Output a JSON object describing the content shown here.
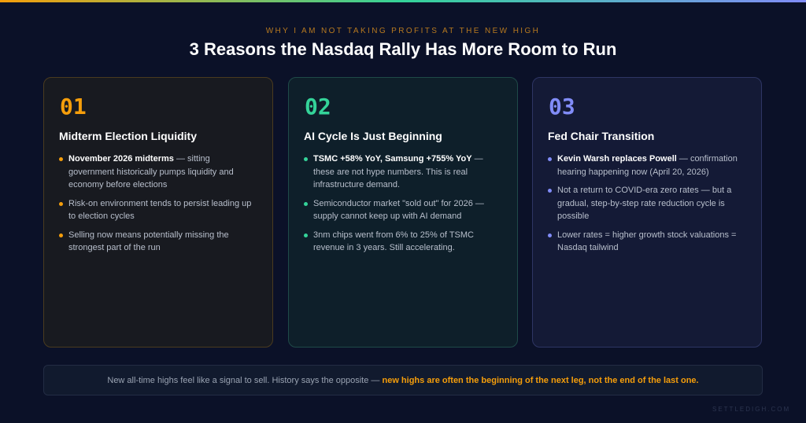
{
  "header": {
    "eyebrow": "WHY I AM NOT TAKING PROFITS AT THE NEW HIGH",
    "title": "3 Reasons the Nasdaq Rally Has More Room to Run"
  },
  "colors": {
    "accent_1": "#f59e0b",
    "accent_2": "#34d399",
    "accent_3": "#818cf8",
    "background": "#0b1128"
  },
  "cards": [
    {
      "number": "01",
      "title": "Midterm Election Liquidity",
      "points": [
        {
          "bold": "November 2026 midterms",
          "text": " — sitting government historically pumps liquidity and economy before elections"
        },
        {
          "bold": "",
          "text": "Risk-on environment tends to persist leading up to election cycles"
        },
        {
          "bold": "",
          "text": "Selling now means potentially missing the strongest part of the run"
        }
      ]
    },
    {
      "number": "02",
      "title": "AI Cycle Is Just Beginning",
      "points": [
        {
          "bold": "TSMC +58% YoY, Samsung +755% YoY",
          "text": " — these are not hype numbers. This is real infrastructure demand."
        },
        {
          "bold": "",
          "text": "Semiconductor market \"sold out\" for 2026 — supply cannot keep up with AI demand"
        },
        {
          "bold": "",
          "text": "3nm chips went from 6% to 25% of TSMC revenue in 3 years. Still accelerating."
        }
      ]
    },
    {
      "number": "03",
      "title": "Fed Chair Transition",
      "points": [
        {
          "bold": "Kevin Warsh replaces Powell",
          "text": " — confirmation hearing happening now (April 20, 2026)"
        },
        {
          "bold": "",
          "text": "Not a return to COVID-era zero rates — but a gradual, step-by-step rate reduction cycle is possible"
        },
        {
          "bold": "",
          "text": "Lower rates = higher growth stock valuations = Nasdaq tailwind"
        }
      ]
    }
  ],
  "footer": {
    "text": "New all-time highs feel like a signal to sell. History says the opposite — ",
    "highlight": "new highs are often the beginning of the next leg, not the end of the last one."
  },
  "watermark": "SETTLEDIGH.COM"
}
